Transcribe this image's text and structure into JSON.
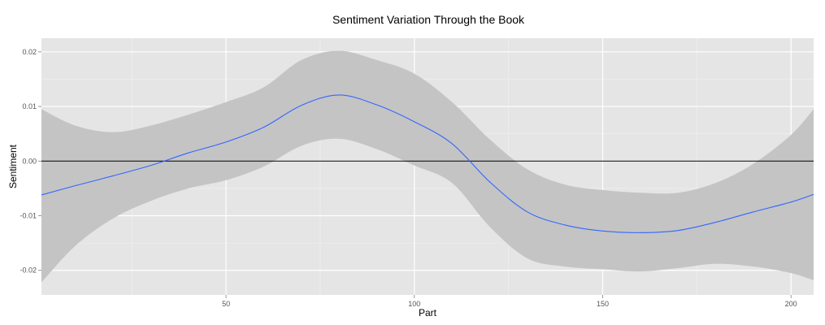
{
  "chart_data": {
    "type": "line",
    "title": "Sentiment Variation Through the Book",
    "xlabel": "Part",
    "ylabel": "Sentiment",
    "xlim": [
      1,
      206
    ],
    "ylim": [
      -0.0245,
      0.0225
    ],
    "x_ticks": [
      50,
      100,
      150,
      200
    ],
    "x_tick_labels": [
      "50",
      "100",
      "150",
      "200"
    ],
    "y_ticks": [
      -0.02,
      -0.01,
      0.0,
      0.01,
      0.02
    ],
    "y_tick_labels": [
      "-0.02",
      "-0.01",
      "0.00",
      "0.01",
      "0.02"
    ],
    "grid": true,
    "hline": 0.0,
    "colors": {
      "panel_background": "#e5e5e5",
      "grid_major": "#ffffff",
      "grid_minor": "#f2f2f2",
      "ribbon": "#c4c4c4",
      "line": "#3366ff",
      "hline": "#000000"
    },
    "series": [
      {
        "x": [
          1,
          10,
          20,
          30,
          40,
          50,
          60,
          70,
          80,
          90,
          100,
          110,
          120,
          130,
          140,
          150,
          160,
          170,
          180,
          190,
          200,
          206
        ],
        "y": [
          -0.0062,
          -0.0045,
          -0.0027,
          -0.0008,
          0.0015,
          0.0035,
          0.0062,
          0.0102,
          0.0121,
          0.0103,
          0.0072,
          0.0032,
          -0.0038,
          -0.0093,
          -0.0117,
          -0.0128,
          -0.0131,
          -0.0127,
          -0.0112,
          -0.0093,
          -0.0075,
          -0.0061
        ],
        "ymin": [
          -0.0222,
          -0.0155,
          -0.0105,
          -0.0073,
          -0.005,
          -0.0035,
          -0.001,
          0.0028,
          0.0041,
          0.0022,
          -0.0008,
          -0.004,
          -0.012,
          -0.0178,
          -0.0193,
          -0.0198,
          -0.0202,
          -0.0196,
          -0.0188,
          -0.0193,
          -0.0205,
          -0.0218
        ],
        "ymax": [
          0.0095,
          0.0065,
          0.0053,
          0.0065,
          0.0085,
          0.0108,
          0.0135,
          0.0185,
          0.0202,
          0.0185,
          0.016,
          0.0108,
          0.004,
          -0.0015,
          -0.0043,
          -0.0053,
          -0.0058,
          -0.0058,
          -0.004,
          -0.0005,
          0.0048,
          0.0095
        ]
      }
    ]
  }
}
